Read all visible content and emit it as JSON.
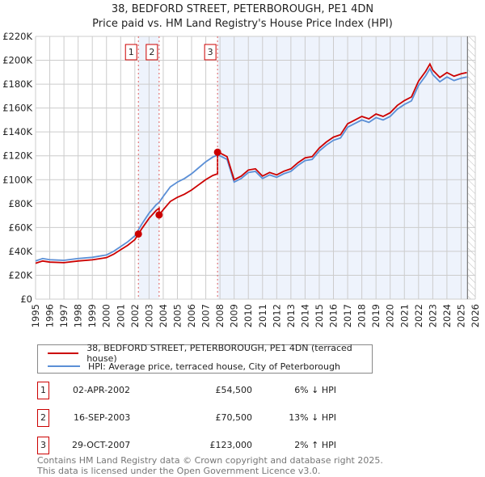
{
  "header": {
    "title": "38, BEDFORD STREET, PETERBOROUGH, PE1 4DN",
    "subtitle": "Price paid vs. HM Land Registry's House Price Index (HPI)"
  },
  "colors": {
    "property": "#cc0000",
    "hpi": "#5b8fd6",
    "shade": "#eef3fc",
    "grid": "#cccccc"
  },
  "chart_data": {
    "type": "line",
    "xlim": [
      1995,
      2026
    ],
    "ylim": [
      0,
      220000
    ],
    "yticks": [
      {
        "v": 0,
        "label": "£0"
      },
      {
        "v": 20000,
        "label": "£20K"
      },
      {
        "v": 40000,
        "label": "£40K"
      },
      {
        "v": 60000,
        "label": "£60K"
      },
      {
        "v": 80000,
        "label": "£80K"
      },
      {
        "v": 100000,
        "label": "£100K"
      },
      {
        "v": 120000,
        "label": "£120K"
      },
      {
        "v": 140000,
        "label": "£140K"
      },
      {
        "v": 160000,
        "label": "£160K"
      },
      {
        "v": 180000,
        "label": "£180K"
      },
      {
        "v": 200000,
        "label": "£200K"
      },
      {
        "v": 220000,
        "label": "£220K"
      }
    ],
    "xticks": [
      "1995",
      "1996",
      "1997",
      "1998",
      "1999",
      "2000",
      "2001",
      "2002",
      "2003",
      "2004",
      "2005",
      "2006",
      "2007",
      "2008",
      "2009",
      "2010",
      "2011",
      "2012",
      "2013",
      "2014",
      "2015",
      "2016",
      "2017",
      "2018",
      "2019",
      "2020",
      "2021",
      "2022",
      "2023",
      "2024",
      "2025",
      "2026"
    ],
    "grid": true,
    "legend_placement": "below",
    "hpi_series": {
      "name": "HPI: Average price, terraced house, City of Peterborough",
      "x": [
        1995,
        1995.5,
        1996,
        1997,
        1998,
        1999,
        2000,
        2000.5,
        2001,
        2001.5,
        2002,
        2002.25,
        2002.5,
        2003,
        2003.5,
        2003.71,
        2004,
        2004.5,
        2005,
        2005.5,
        2006,
        2006.5,
        2007,
        2007.5,
        2007.83,
        2008,
        2008.5,
        2009,
        2009.5,
        2010,
        2010.5,
        2011,
        2011.5,
        2012,
        2012.5,
        2013,
        2013.5,
        2014,
        2014.5,
        2015,
        2015.5,
        2016,
        2016.5,
        2017,
        2017.5,
        2018,
        2018.5,
        2019,
        2019.5,
        2020,
        2020.5,
        2021,
        2021.5,
        2022,
        2022.5,
        2022.8,
        2023,
        2023.5,
        2024,
        2024.5,
        2025,
        2025.4
      ],
      "y": [
        32000,
        34000,
        33000,
        32500,
        34000,
        35000,
        37000,
        40000,
        44000,
        48000,
        53000,
        58000,
        63000,
        72000,
        79000,
        81000,
        86000,
        94000,
        98000,
        101000,
        105000,
        110000,
        115000,
        119000,
        120600,
        120000,
        117000,
        98000,
        101000,
        106000,
        107000,
        101000,
        104000,
        102000,
        105000,
        107000,
        112000,
        116000,
        117000,
        124000,
        129000,
        133000,
        135000,
        144000,
        147000,
        150000,
        148000,
        152000,
        150000,
        153000,
        159000,
        163000,
        166000,
        179000,
        187000,
        193000,
        188000,
        182000,
        186000,
        183000,
        185000,
        186000
      ]
    },
    "property_series": {
      "name": "38, BEDFORD STREET, PETERBOROUGH, PE1 4DN (terraced house)"
    },
    "sales": [
      {
        "id": "1",
        "date": "02-APR-2002",
        "x": 2002.25,
        "price": 54500,
        "price_label": "£54,500",
        "hpi_diff": "6% ↓ HPI"
      },
      {
        "id": "2",
        "date": "16-SEP-2003",
        "x": 2003.71,
        "price": 70500,
        "price_label": "£70,500",
        "hpi_diff": "13% ↓ HPI"
      },
      {
        "id": "3",
        "date": "29-OCT-2007",
        "x": 2007.83,
        "price": 123000,
        "price_label": "£123,000",
        "hpi_diff": "2% ↑ HPI"
      }
    ],
    "forecast_start": 2025.45
  },
  "footer": {
    "line1": "Contains HM Land Registry data © Crown copyright and database right 2025.",
    "line2": "This data is licensed under the Open Government Licence v3.0."
  }
}
